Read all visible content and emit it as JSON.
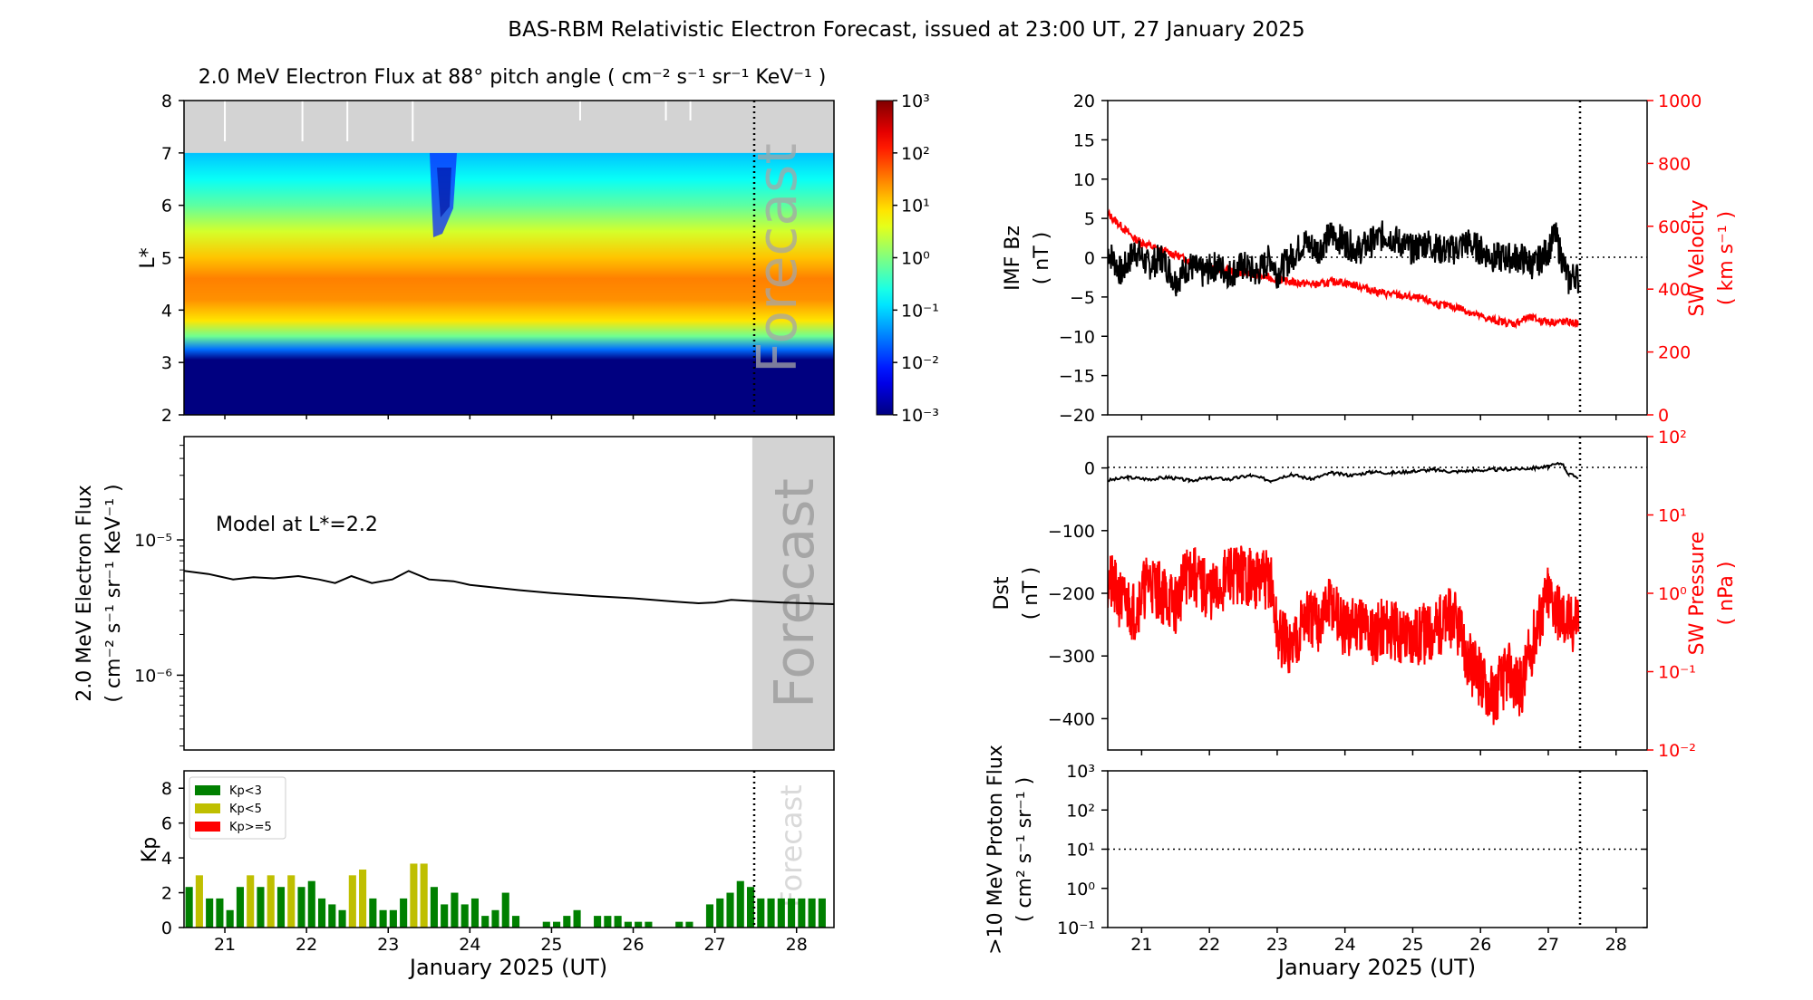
{
  "page": {
    "title": "BAS-RBM Relativistic Electron Forecast, issued at 23:00 UT, 27 January 2025"
  },
  "colors": {
    "axis": "#000000",
    "forecast_shade": "#d3d3d3",
    "forecast_text": "#a6a6a6",
    "red_series": "#ff0000",
    "kp_low": "#008000",
    "kp_mid": "#bfbf00",
    "kp_high": "#ff0000",
    "no_data": "#d3d3d3"
  },
  "chart_data": [
    {
      "id": "spectrogram",
      "type": "heatmap",
      "title": "2.0 MeV Electron Flux at 88° pitch angle ( cm⁻² s⁻¹ sr⁻¹ KeV⁻¹ )",
      "ylabel": "L*",
      "ylim": [
        2,
        8
      ],
      "yticks": [
        2,
        3,
        4,
        5,
        6,
        7,
        8
      ],
      "xlim": [
        20.5,
        28.4583
      ],
      "forecast_start": 27.4583,
      "forecast_label": "Forecast",
      "no_data_above_L": 7.0,
      "log_flux_profile": [
        {
          "L": 2.0,
          "log_flux": -3.0
        },
        {
          "L": 3.05,
          "log_flux": -3.0
        },
        {
          "L": 3.25,
          "log_flux": -1.6
        },
        {
          "L": 3.5,
          "log_flux": -0.1
        },
        {
          "L": 3.8,
          "log_flux": 0.9
        },
        {
          "L": 4.2,
          "log_flux": 1.4
        },
        {
          "L": 4.6,
          "log_flux": 1.5
        },
        {
          "L": 5.0,
          "log_flux": 1.1
        },
        {
          "L": 5.5,
          "log_flux": 0.5
        },
        {
          "L": 6.0,
          "log_flux": -0.2
        },
        {
          "L": 6.5,
          "log_flux": -0.7
        },
        {
          "L": 7.0,
          "log_flux": -1.1
        }
      ],
      "colorbar": {
        "range_log10": [
          -3,
          3
        ],
        "tick_labels": [
          "10⁻³",
          "10⁻²",
          "10⁻¹",
          "10⁰",
          "10¹",
          "10²",
          "10³"
        ]
      }
    },
    {
      "id": "flux_line",
      "type": "line",
      "ylabel": "2.0 MeV Electron Flux",
      "ylabel_units": "( cm⁻² s⁻¹ sr⁻¹ KeV⁻¹ )",
      "yscale": "log",
      "ylim": [
        2.8e-07,
        5.8e-05
      ],
      "yticks": [
        {
          "value": 1e-06,
          "label": "10⁻⁶"
        },
        {
          "value": 1e-05,
          "label": "10⁻⁵"
        }
      ],
      "xlim": [
        20.5,
        28.4583
      ],
      "annotation": "Model at L*=2.2",
      "forecast_start": 27.4583,
      "forecast_label": "Forecast",
      "x": [
        20.5,
        20.8,
        21.1,
        21.35,
        21.6,
        21.9,
        22.15,
        22.35,
        22.55,
        22.8,
        23.05,
        23.25,
        23.5,
        23.8,
        24.0,
        24.3,
        24.6,
        25.0,
        25.5,
        26.0,
        26.5,
        26.8,
        27.0,
        27.2,
        27.4,
        27.8,
        28.4583
      ],
      "values": [
        5.9e-06,
        5.6e-06,
        5.1e-06,
        5.3e-06,
        5.2e-06,
        5.4e-06,
        5.1e-06,
        4.8e-06,
        5.4e-06,
        4.8e-06,
        5.1e-06,
        5.9e-06,
        5.1e-06,
        4.95e-06,
        4.65e-06,
        4.45e-06,
        4.25e-06,
        4.05e-06,
        3.85e-06,
        3.7e-06,
        3.5e-06,
        3.4e-06,
        3.45e-06,
        3.6e-06,
        3.55e-06,
        3.45e-06,
        3.35e-06
      ]
    },
    {
      "id": "kp",
      "type": "bar",
      "ylabel": "Kp",
      "ylim": [
        0,
        9
      ],
      "yticks": [
        0,
        2,
        4,
        6,
        8
      ],
      "xlim": [
        20.5,
        28.4583
      ],
      "xticks": [
        21,
        22,
        23,
        24,
        25,
        26,
        27,
        28
      ],
      "xlabel": "January 2025 (UT)",
      "forecast_start": 27.4583,
      "forecast_label": "Forecast",
      "legend": [
        "Kp<3",
        "Kp<5",
        "Kp>=5"
      ],
      "bar_width_days": 0.09,
      "x": [
        20.5625,
        20.6875,
        20.8125,
        20.9375,
        21.0625,
        21.1875,
        21.3125,
        21.4375,
        21.5625,
        21.6875,
        21.8125,
        21.9375,
        22.0625,
        22.1875,
        22.3125,
        22.4375,
        22.5625,
        22.6875,
        22.8125,
        22.9375,
        23.0625,
        23.1875,
        23.3125,
        23.4375,
        23.5625,
        23.6875,
        23.8125,
        23.9375,
        24.0625,
        24.1875,
        24.3125,
        24.4375,
        24.5625,
        24.6875,
        24.8125,
        24.9375,
        25.0625,
        25.1875,
        25.3125,
        25.4375,
        25.5625,
        25.6875,
        25.8125,
        25.9375,
        26.0625,
        26.1875,
        26.3125,
        26.4375,
        26.5625,
        26.6875,
        26.8125,
        26.9375,
        27.0625,
        27.1875,
        27.3125,
        27.4375,
        27.5625,
        27.6875,
        27.8125,
        27.9375,
        28.0625,
        28.1875,
        28.3125
      ],
      "values": [
        2.33,
        3.0,
        1.67,
        1.67,
        1.0,
        2.33,
        3.0,
        2.33,
        3.0,
        2.33,
        3.0,
        2.33,
        2.67,
        1.67,
        1.33,
        1.0,
        3.0,
        3.33,
        1.67,
        1.0,
        1.0,
        1.67,
        3.67,
        3.67,
        2.33,
        1.33,
        2.0,
        1.33,
        1.67,
        0.67,
        1.0,
        2.0,
        0.67,
        0.0,
        0.0,
        0.33,
        0.33,
        0.67,
        1.0,
        0.0,
        0.67,
        0.67,
        0.67,
        0.33,
        0.33,
        0.33,
        0.0,
        0.0,
        0.33,
        0.33,
        0.0,
        1.33,
        1.67,
        2.0,
        2.67,
        2.33,
        1.67,
        1.67,
        1.67,
        1.67,
        1.67,
        1.67,
        1.67
      ]
    },
    {
      "id": "imf_sw",
      "type": "line",
      "ylabel": "IMF Bz",
      "ylabel_units": "( nT )",
      "ylim": [
        -20,
        20
      ],
      "yticks": [
        -20,
        -15,
        -10,
        -5,
        0,
        5,
        10,
        15,
        20
      ],
      "y2label": "SW Velocity",
      "y2label_units": "( km s⁻¹ )",
      "y2lim": [
        0,
        1000
      ],
      "y2ticks": [
        0,
        200,
        400,
        600,
        800,
        1000
      ],
      "xlim": [
        20.5,
        28.4583
      ],
      "issue_time": 27.4583,
      "series": [
        {
          "name": "IMF Bz",
          "color": "#000000",
          "axis": "left",
          "x": [
            20.5,
            20.7,
            20.9,
            21.1,
            21.3,
            21.5,
            21.7,
            21.9,
            22.1,
            22.3,
            22.5,
            22.7,
            22.9,
            23.0,
            23.2,
            23.4,
            23.6,
            23.8,
            24.0,
            24.2,
            24.4,
            24.6,
            24.8,
            25.0,
            25.2,
            25.4,
            25.6,
            25.8,
            26.0,
            26.2,
            26.4,
            26.6,
            26.8,
            27.0,
            27.1,
            27.2,
            27.3,
            27.4,
            27.45
          ],
          "values": [
            1,
            -2,
            1,
            -1,
            0,
            -3,
            -1,
            -2,
            -1,
            -2,
            -1,
            -2,
            0,
            -2,
            0,
            2,
            1,
            3,
            2,
            1,
            2,
            3,
            2,
            1,
            2,
            1,
            1,
            2,
            1,
            0,
            0,
            0,
            -1,
            1,
            3,
            0,
            -3,
            -2,
            -3
          ]
        },
        {
          "name": "SW Velocity",
          "color": "#ff0000",
          "axis": "right",
          "x": [
            20.5,
            20.6,
            20.75,
            20.9,
            21.2,
            21.5,
            21.8,
            22.1,
            22.4,
            22.7,
            23.0,
            23.3,
            23.6,
            23.9,
            24.2,
            24.5,
            24.8,
            25.1,
            25.4,
            25.7,
            25.9,
            26.2,
            26.5,
            26.7,
            26.9,
            27.1,
            27.3,
            27.45
          ],
          "values": [
            640,
            620,
            590,
            560,
            530,
            510,
            480,
            465,
            455,
            445,
            430,
            420,
            415,
            425,
            410,
            390,
            380,
            370,
            350,
            340,
            320,
            300,
            290,
            310,
            300,
            295,
            295,
            290
          ]
        }
      ]
    },
    {
      "id": "dst_pressure",
      "type": "line",
      "ylabel": "Dst",
      "ylabel_units": "( nT )",
      "ylim": [
        -450,
        50
      ],
      "yticks": [
        0,
        -100,
        -200,
        -300,
        -400
      ],
      "y2label": "SW Pressure",
      "y2label_units": "( nPa )",
      "y2scale": "log",
      "y2lim": [
        0.01,
        100
      ],
      "y2tick_labels": [
        "10⁻²",
        "10⁻¹",
        "10⁰",
        "10¹",
        "10²"
      ],
      "xlim": [
        20.5,
        28.4583
      ],
      "issue_time": 27.4583,
      "series": [
        {
          "name": "Dst",
          "color": "#000000",
          "axis": "left",
          "x": [
            20.5,
            20.8,
            21.1,
            21.4,
            21.7,
            22.0,
            22.3,
            22.6,
            22.9,
            23.2,
            23.5,
            23.8,
            24.1,
            24.4,
            24.7,
            25.0,
            25.3,
            25.6,
            25.9,
            26.2,
            26.5,
            26.8,
            27.0,
            27.2,
            27.3,
            27.45
          ],
          "values": [
            -20,
            -15,
            -18,
            -15,
            -20,
            -16,
            -18,
            -12,
            -20,
            -10,
            -18,
            -8,
            -12,
            -6,
            -8,
            -5,
            -3,
            -6,
            -4,
            -3,
            -2,
            0,
            2,
            8,
            -10,
            -15
          ]
        },
        {
          "name": "SW Pressure",
          "color": "#ff0000",
          "axis": "right",
          "x": [
            20.5,
            20.7,
            20.9,
            21.1,
            21.3,
            21.5,
            21.7,
            21.9,
            22.1,
            22.3,
            22.5,
            22.7,
            22.9,
            23.0,
            23.2,
            23.4,
            23.6,
            23.8,
            24.0,
            24.2,
            24.4,
            24.6,
            24.8,
            25.0,
            25.2,
            25.4,
            25.6,
            25.8,
            26.0,
            26.2,
            26.4,
            26.6,
            26.8,
            27.0,
            27.2,
            27.35,
            27.45
          ],
          "values": [
            1.5,
            0.8,
            0.6,
            1.5,
            1.0,
            0.7,
            2.0,
            1.2,
            1.0,
            1.8,
            1.7,
            1.5,
            1.5,
            0.3,
            0.2,
            0.5,
            0.4,
            0.8,
            0.3,
            0.5,
            0.3,
            0.4,
            0.3,
            0.3,
            0.3,
            0.4,
            0.5,
            0.15,
            0.08,
            0.05,
            0.1,
            0.06,
            0.3,
            1.0,
            0.5,
            0.4,
            0.6
          ]
        }
      ]
    },
    {
      "id": "proton_flux",
      "type": "line",
      "ylabel": ">10 MeV Proton Flux",
      "ylabel_units": "( cm² s⁻¹ sr⁻¹ )",
      "yscale": "log",
      "ylim": [
        0.1,
        1000
      ],
      "ytick_labels": [
        "10⁻¹",
        "10⁰",
        "10¹",
        "10²",
        "10³"
      ],
      "xlim": [
        20.5,
        28.4583
      ],
      "xticks": [
        21,
        22,
        23,
        24,
        25,
        26,
        27,
        28
      ],
      "xlabel": "January 2025 (UT)",
      "threshold": 10,
      "issue_time": 27.4583,
      "series": []
    }
  ]
}
